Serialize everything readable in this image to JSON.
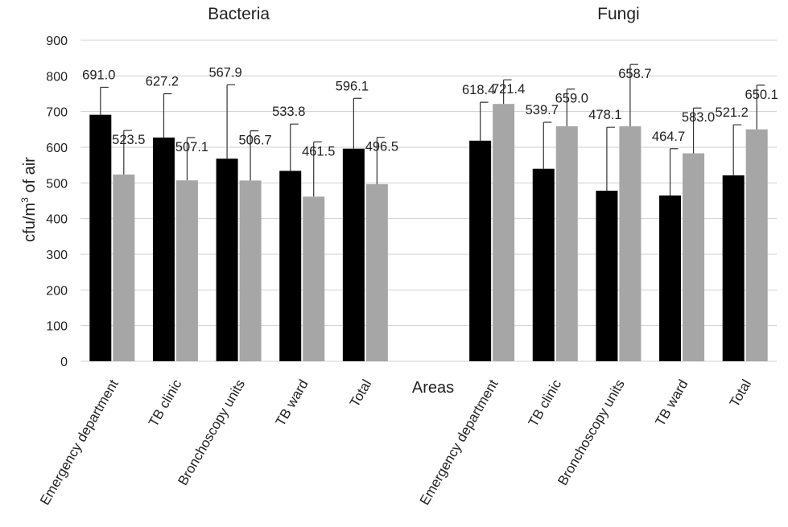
{
  "chart_data": {
    "type": "bar",
    "ylabel": {
      "main": "cfu/m",
      "sup": "3",
      "rest": " of air"
    },
    "xlabel": "Areas",
    "ylim": [
      0,
      900
    ],
    "yticks": [
      "0",
      "100",
      "200",
      "300",
      "400",
      "500",
      "600",
      "700",
      "800",
      "900"
    ],
    "grid": true,
    "colors": {
      "series_a": "#000000",
      "series_b": "#a6a6a6"
    },
    "groups": [
      {
        "title": "Bacteria",
        "categories": [
          "Emergency department",
          "TB clinic",
          "Bronchoscopy units",
          "TB ward",
          "Total"
        ],
        "series": [
          {
            "values": [
              691.0,
              627.2,
              567.9,
              533.8,
              596.1
            ],
            "labels": [
              "691.0",
              "627.2",
              "567.9",
              "533.8",
              "596.1"
            ],
            "err_top": [
              768,
              750,
              775,
              665,
              737
            ]
          },
          {
            "values": [
              523.5,
              507.1,
              506.7,
              461.5,
              496.5
            ],
            "labels": [
              "523.5",
              "507.1",
              "506.7",
              "461.5",
              "496.5"
            ],
            "err_top": [
              647,
              627,
              646,
              615,
              628
            ]
          }
        ]
      },
      {
        "title": "Fungi",
        "categories": [
          "Emergency department",
          "TB clinic",
          "Bronchoscopy units",
          "TB ward",
          "Total"
        ],
        "series": [
          {
            "values": [
              618.4,
              539.7,
              478.1,
              464.7,
              521.2
            ],
            "labels": [
              "618.4",
              "539.7",
              "478.1",
              "464.7",
              "521.2"
            ],
            "err_top": [
              726,
              670,
              656,
              596,
              663
            ]
          },
          {
            "values": [
              721.4,
              659.0,
              658.7,
              583.0,
              650.1
            ],
            "labels": [
              "721.4",
              "659.0",
              "658.7",
              "583.0",
              "650.1"
            ],
            "err_top": [
              789,
              763,
              832,
              710,
              774
            ]
          }
        ]
      }
    ]
  }
}
